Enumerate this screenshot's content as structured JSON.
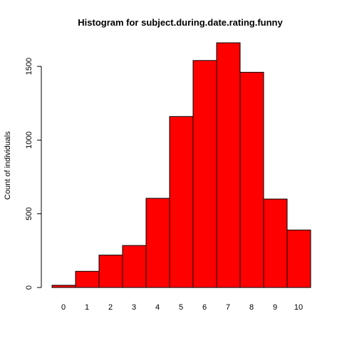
{
  "chart_data": {
    "type": "bar",
    "title": "Histogram for subject.during.date.rating.funny",
    "xlabel": "",
    "ylabel": "Count of individuals",
    "categories": [
      "0",
      "1",
      "2",
      "3",
      "4",
      "5",
      "6",
      "7",
      "8",
      "9",
      "10"
    ],
    "values": [
      15,
      110,
      220,
      285,
      605,
      1160,
      1540,
      1660,
      1460,
      600,
      390
    ],
    "ylim": [
      0,
      1660
    ],
    "yticks": [
      "0",
      "500",
      "1000",
      "1500"
    ],
    "grid": false,
    "bar_color": "#ff0000",
    "bar_border_color": "#000000"
  }
}
